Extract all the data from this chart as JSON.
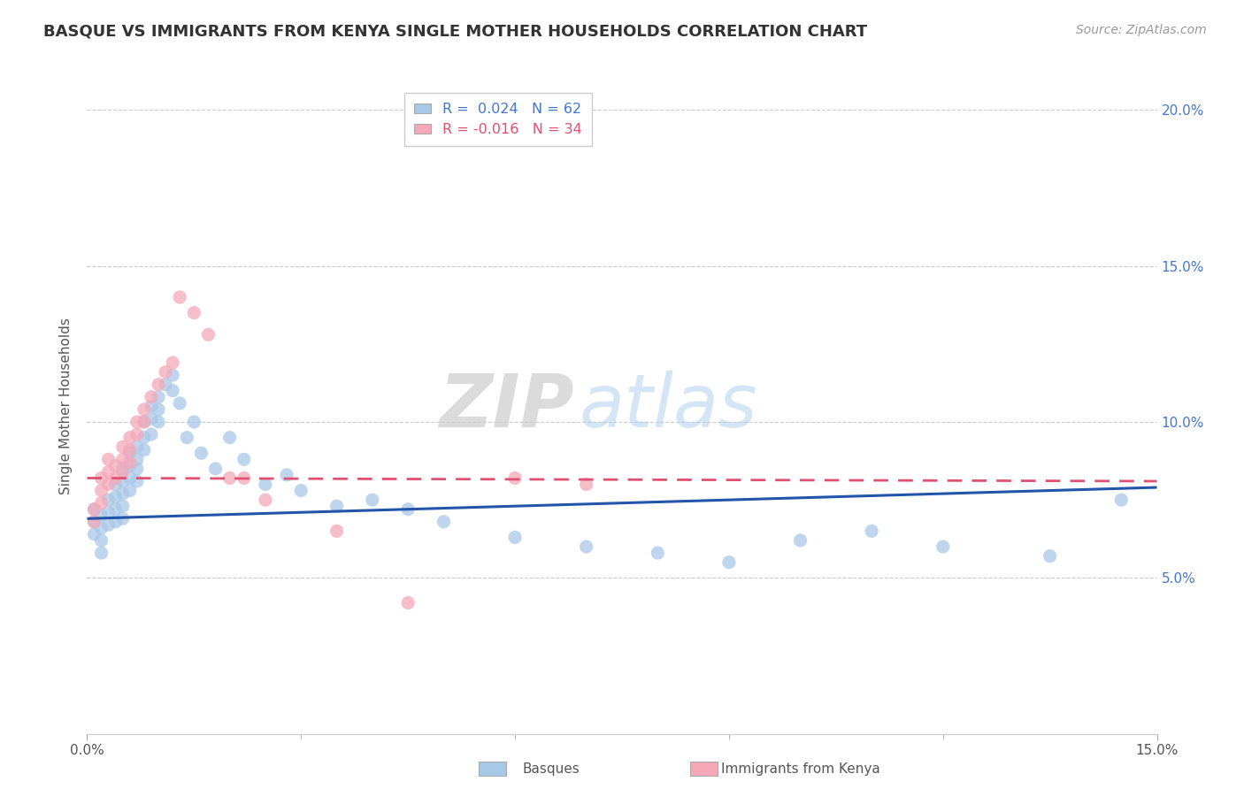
{
  "title": "BASQUE VS IMMIGRANTS FROM KENYA SINGLE MOTHER HOUSEHOLDS CORRELATION CHART",
  "source": "Source: ZipAtlas.com",
  "xlabel_label": "Basques",
  "xlabel2_label": "Immigrants from Kenya",
  "ylabel": "Single Mother Households",
  "xlim": [
    0.0,
    0.15
  ],
  "ylim": [
    0.0,
    0.21
  ],
  "r_basque": 0.024,
  "n_basque": 62,
  "r_kenya": -0.016,
  "n_kenya": 34,
  "color_basque": "#a8c8e8",
  "color_kenya": "#f4a8b8",
  "line_color_basque": "#2255aa",
  "line_color_kenya": "#e05070",
  "watermark_zip": "ZIP",
  "watermark_atlas": "atlas",
  "basque_x": [
    0.001,
    0.001,
    0.001,
    0.002,
    0.002,
    0.002,
    0.002,
    0.003,
    0.003,
    0.003,
    0.004,
    0.004,
    0.004,
    0.004,
    0.005,
    0.005,
    0.005,
    0.005,
    0.005,
    0.006,
    0.006,
    0.006,
    0.006,
    0.007,
    0.007,
    0.007,
    0.007,
    0.008,
    0.008,
    0.008,
    0.009,
    0.009,
    0.009,
    0.01,
    0.01,
    0.01,
    0.011,
    0.012,
    0.012,
    0.013,
    0.014,
    0.015,
    0.016,
    0.018,
    0.02,
    0.022,
    0.025,
    0.028,
    0.03,
    0.035,
    0.04,
    0.045,
    0.05,
    0.06,
    0.07,
    0.08,
    0.09,
    0.1,
    0.11,
    0.12,
    0.135,
    0.145
  ],
  "basque_y": [
    0.072,
    0.068,
    0.064,
    0.07,
    0.066,
    0.062,
    0.058,
    0.075,
    0.071,
    0.067,
    0.08,
    0.076,
    0.072,
    0.068,
    0.085,
    0.081,
    0.077,
    0.073,
    0.069,
    0.09,
    0.086,
    0.082,
    0.078,
    0.092,
    0.088,
    0.085,
    0.081,
    0.1,
    0.095,
    0.091,
    0.105,
    0.101,
    0.096,
    0.108,
    0.104,
    0.1,
    0.112,
    0.115,
    0.11,
    0.106,
    0.095,
    0.1,
    0.09,
    0.085,
    0.095,
    0.088,
    0.08,
    0.083,
    0.078,
    0.073,
    0.075,
    0.072,
    0.068,
    0.063,
    0.06,
    0.058,
    0.055,
    0.062,
    0.065,
    0.06,
    0.057,
    0.075
  ],
  "kenya_x": [
    0.001,
    0.001,
    0.002,
    0.002,
    0.002,
    0.003,
    0.003,
    0.003,
    0.004,
    0.004,
    0.005,
    0.005,
    0.005,
    0.006,
    0.006,
    0.006,
    0.007,
    0.007,
    0.008,
    0.008,
    0.009,
    0.01,
    0.011,
    0.012,
    0.013,
    0.015,
    0.017,
    0.02,
    0.022,
    0.025,
    0.035,
    0.045,
    0.06,
    0.07
  ],
  "kenya_y": [
    0.072,
    0.068,
    0.082,
    0.078,
    0.074,
    0.088,
    0.084,
    0.08,
    0.086,
    0.082,
    0.092,
    0.088,
    0.084,
    0.095,
    0.091,
    0.087,
    0.1,
    0.096,
    0.104,
    0.1,
    0.108,
    0.112,
    0.116,
    0.119,
    0.14,
    0.135,
    0.128,
    0.082,
    0.082,
    0.075,
    0.065,
    0.042,
    0.082,
    0.08
  ]
}
